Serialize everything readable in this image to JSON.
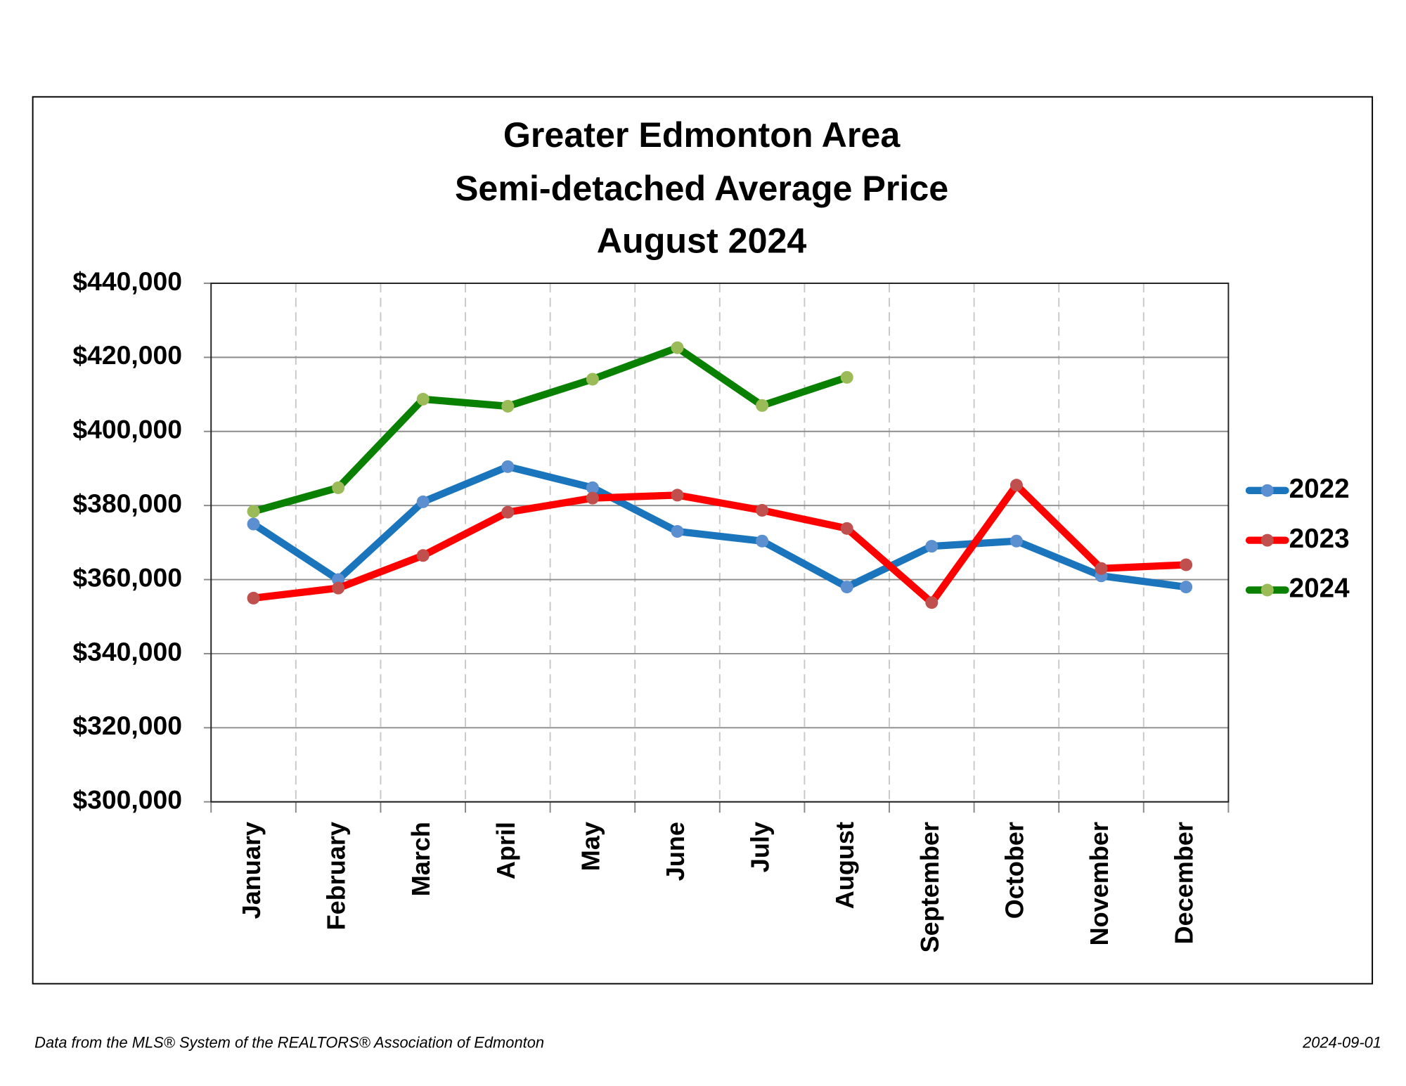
{
  "chart_data": {
    "type": "line",
    "title": [
      "Greater Edmonton Area",
      "Semi-detached Average Price",
      "August 2024"
    ],
    "categories": [
      "January",
      "February",
      "March",
      "April",
      "May",
      "June",
      "July",
      "August",
      "September",
      "October",
      "November",
      "December"
    ],
    "series": [
      {
        "name": "2022",
        "color": "#1a75bc",
        "marker_color": "#5b8fd0",
        "values": [
          375000,
          360000,
          381000,
          390500,
          384800,
          373000,
          370400,
          358000,
          369000,
          370400,
          361000,
          358000
        ]
      },
      {
        "name": "2023",
        "color": "#ff0000",
        "marker_color": "#c0504d",
        "values": [
          355000,
          357700,
          366500,
          378200,
          382000,
          382800,
          378700,
          373800,
          353800,
          385500,
          363000,
          364000
        ]
      },
      {
        "name": "2024",
        "color": "#0a8000",
        "marker_color": "#9bbb59",
        "values": [
          378400,
          384800,
          408700,
          406800,
          414100,
          422600,
          407000,
          414600,
          null,
          null,
          null,
          null
        ]
      }
    ],
    "ylim": [
      300000,
      440000
    ],
    "yticks": [
      {
        "value": 300000,
        "label": "$300,000"
      },
      {
        "value": 320000,
        "label": "$320,000"
      },
      {
        "value": 340000,
        "label": "$340,000"
      },
      {
        "value": 360000,
        "label": "$360,000"
      },
      {
        "value": 380000,
        "label": "$380,000"
      },
      {
        "value": 400000,
        "label": "$400,000"
      },
      {
        "value": 420000,
        "label": "$420,000"
      },
      {
        "value": 440000,
        "label": "$440,000"
      }
    ],
    "grid": true,
    "legend": "right",
    "source": "Data from the MLS® System of the REALTORS® Association of Edmonton",
    "date": "2024-09-01"
  }
}
